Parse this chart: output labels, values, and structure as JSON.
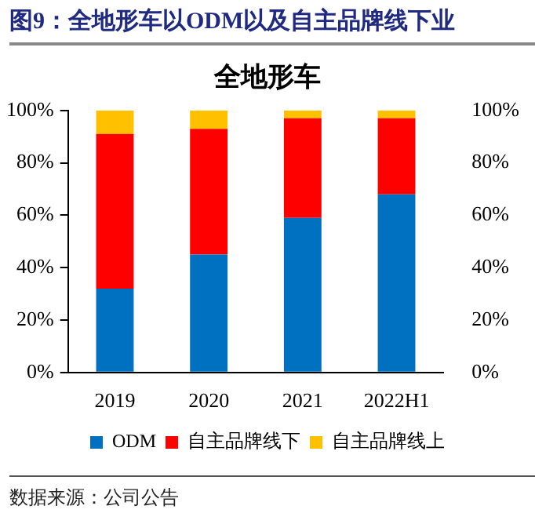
{
  "chart_data": {
    "type": "bar",
    "title": "全地形车",
    "subtitle": "图9：全地形车以ODM以及自主品牌线下业",
    "categories": [
      "2019",
      "2020",
      "2021",
      "2022H1"
    ],
    "series": [
      {
        "name": "ODM",
        "color": "#0070c0",
        "values": [
          32,
          45,
          59,
          68
        ]
      },
      {
        "name": "自主品牌线下",
        "color": "#ff0000",
        "values": [
          59,
          48,
          38,
          29
        ]
      },
      {
        "name": "自主品牌线上",
        "color": "#ffc000",
        "values": [
          9,
          7,
          3,
          3
        ]
      }
    ],
    "stacked": true,
    "ylim": [
      0,
      100
    ],
    "yticks": [
      {
        "value": 0,
        "label": "0%"
      },
      {
        "value": 20,
        "label": "20%"
      },
      {
        "value": 40,
        "label": "40%"
      },
      {
        "value": 60,
        "label": "60%"
      },
      {
        "value": 80,
        "label": "80%"
      },
      {
        "value": 100,
        "label": "100%"
      }
    ],
    "y2lim": [
      0,
      100
    ],
    "y2ticks": [
      {
        "value": 0,
        "label": "0%"
      },
      {
        "value": 20,
        "label": "20%"
      },
      {
        "value": 40,
        "label": "40%"
      },
      {
        "value": 60,
        "label": "60%"
      },
      {
        "value": 80,
        "label": "80%"
      },
      {
        "value": 100,
        "label": "100%"
      }
    ],
    "grid": false,
    "legend": "bottom",
    "annotations": [
      "数据来源：公司公告"
    ]
  }
}
